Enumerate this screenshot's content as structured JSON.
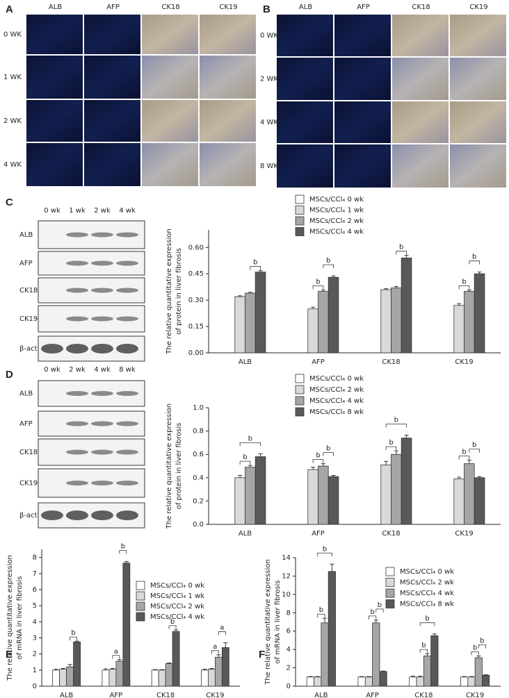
{
  "panels": [
    {
      "label": "A",
      "columns": [
        "ALB",
        "AFP",
        "CK18",
        "CK19"
      ],
      "rows": [
        "0 WK",
        "1 WK",
        "2 WK",
        "4 WK"
      ]
    },
    {
      "label": "B",
      "columns": [
        "ALB",
        "AFP",
        "CK18",
        "CK19"
      ],
      "rows": [
        "0 WK",
        "2 WK",
        "4 WK",
        "8 WK"
      ]
    }
  ],
  "blots": [
    {
      "lanes": [
        "0 wk",
        "1 wk",
        "2 wk",
        "4 wk"
      ],
      "rows": [
        "ALB",
        "AFP",
        "CK18",
        "CK19",
        "β-actin"
      ]
    },
    {
      "lanes": [
        "0 wk",
        "2 wk",
        "4 wk",
        "8 wk"
      ],
      "rows": [
        "ALB",
        "AFP",
        "CK18",
        "CK19",
        "β-actin"
      ]
    }
  ],
  "chart_data": [
    {
      "type": "bar",
      "panel_label": "C",
      "ylabel": [
        "The relative quantitative expression",
        "of protein in liver fibrosis"
      ],
      "categories": [
        "ALB",
        "AFP",
        "CK18",
        "CK19"
      ],
      "series": [
        {
          "name": "MSCs/CCl₄  0 wk",
          "color": "#ffffff",
          "values": [
            0,
            0,
            0,
            0
          ],
          "errors": [
            0,
            0,
            0,
            0
          ]
        },
        {
          "name": "MSCs/CCl₄  1 wk",
          "color": "#d9d9d9",
          "values": [
            0.32,
            0.25,
            0.36,
            0.27
          ],
          "errors": [
            0.005,
            0.01,
            0.005,
            0.01
          ]
        },
        {
          "name": "MSCs/CCl₄  2 wk",
          "color": "#a6a6a6",
          "values": [
            0.34,
            0.35,
            0.37,
            0.35
          ],
          "errors": [
            0.005,
            0.008,
            0.008,
            0.008
          ]
        },
        {
          "name": "MSCs/CCl₄  4 wk",
          "color": "#595959",
          "values": [
            0.46,
            0.43,
            0.54,
            0.45
          ],
          "errors": [
            0.008,
            0.008,
            0.015,
            0.01
          ]
        }
      ],
      "ylim": [
        0,
        0.7
      ],
      "yticks": [
        {
          "value": 0,
          "label": "0.00"
        },
        {
          "value": 0.15,
          "label": "0.15"
        },
        {
          "value": 0.3,
          "label": "0.30"
        },
        {
          "value": 0.45,
          "label": "0.45"
        },
        {
          "value": 0.6,
          "label": "0.60"
        }
      ],
      "significance": [
        {
          "label": "b",
          "category": 0,
          "bars": [
            2,
            3
          ]
        },
        {
          "label": "b",
          "category": 1,
          "bars": [
            1,
            2
          ]
        },
        {
          "label": "b",
          "category": 1,
          "bars": [
            2,
            3
          ]
        },
        {
          "label": "b",
          "category": 2,
          "bars": [
            2,
            3
          ]
        },
        {
          "label": "b",
          "category": 3,
          "bars": [
            1,
            2
          ]
        },
        {
          "label": "b",
          "category": 3,
          "bars": [
            2,
            3
          ]
        }
      ]
    },
    {
      "type": "bar",
      "panel_label": "D",
      "ylabel": [
        "The relative quantitative expression",
        "of protein in liver fibrosis"
      ],
      "categories": [
        "ALB",
        "AFP",
        "CK18",
        "CK19"
      ],
      "series": [
        {
          "name": "MSCs/CCl₄  0 wk",
          "color": "#ffffff",
          "values": [
            0,
            0,
            0,
            0
          ],
          "errors": [
            0,
            0,
            0,
            0
          ]
        },
        {
          "name": "MSCs/CCl₄  2 wk",
          "color": "#d9d9d9",
          "values": [
            0.4,
            0.47,
            0.51,
            0.39
          ],
          "errors": [
            0.02,
            0.02,
            0.03,
            0.015
          ]
        },
        {
          "name": "MSCs/CCl₄  4 wk",
          "color": "#a6a6a6",
          "values": [
            0.49,
            0.5,
            0.6,
            0.52
          ],
          "errors": [
            0.015,
            0.02,
            0.03,
            0.03
          ]
        },
        {
          "name": "MSCs/CCl₄  8 wk",
          "color": "#595959",
          "values": [
            0.58,
            0.41,
            0.74,
            0.4
          ],
          "errors": [
            0.025,
            0.01,
            0.025,
            0.01
          ]
        }
      ],
      "ylim": [
        0,
        1
      ],
      "yticks": [
        {
          "value": 0,
          "label": "0.0"
        },
        {
          "value": 0.2,
          "label": "0.2"
        },
        {
          "value": 0.4,
          "label": "0.4"
        },
        {
          "value": 0.6,
          "label": "0.6"
        },
        {
          "value": 0.8,
          "label": "0.8"
        },
        {
          "value": 1,
          "label": "1.0"
        }
      ],
      "significance": [
        {
          "label": "b",
          "category": 0,
          "bars": [
            1,
            2
          ]
        },
        {
          "label": "b",
          "category": 0,
          "bars": [
            1,
            3
          ]
        },
        {
          "label": "b",
          "category": 1,
          "bars": [
            1,
            2
          ]
        },
        {
          "label": "b",
          "category": 1,
          "bars": [
            2,
            3
          ]
        },
        {
          "label": "b",
          "category": 2,
          "bars": [
            1,
            2
          ]
        },
        {
          "label": "b",
          "category": 2,
          "bars": [
            1,
            3
          ]
        },
        {
          "label": "b",
          "category": 3,
          "bars": [
            1,
            2
          ]
        },
        {
          "label": "b",
          "category": 3,
          "bars": [
            2,
            3
          ]
        }
      ]
    },
    {
      "type": "bar",
      "panel_label": "E",
      "ylabel": [
        "The relative quantitative expression",
        "of mRNA in liver fibrosis"
      ],
      "categories": [
        "ALB",
        "AFP",
        "CK18",
        "CK19"
      ],
      "series": [
        {
          "name": "MSCs/CCl₄  0 wk",
          "color": "#ffffff",
          "values": [
            1.0,
            1.0,
            1.0,
            1.0
          ],
          "errors": [
            0.05,
            0.08,
            0.03,
            0.06
          ]
        },
        {
          "name": "MSCs/CCl₄  1 wk",
          "color": "#d9d9d9",
          "values": [
            1.05,
            1.05,
            1.0,
            1.05
          ],
          "errors": [
            0.05,
            0.05,
            0.03,
            0.05
          ]
        },
        {
          "name": "MSCs/CCl₄  2 wk",
          "color": "#a6a6a6",
          "values": [
            1.2,
            1.55,
            1.4,
            1.8
          ],
          "errors": [
            0.15,
            0.1,
            0.05,
            0.15
          ]
        },
        {
          "name": "MSCs/CCl₄  4 wk",
          "color": "#595959",
          "values": [
            2.75,
            7.65,
            3.4,
            2.4
          ],
          "errors": [
            0.05,
            0.1,
            0.1,
            0.3
          ]
        }
      ],
      "ylim": [
        0,
        8.5
      ],
      "yticks": [
        0,
        1,
        2,
        3,
        4,
        5,
        6,
        7,
        8
      ],
      "significance": [
        {
          "label": "b",
          "category": 0,
          "bars": [
            2,
            3
          ]
        },
        {
          "label": "a",
          "category": 1,
          "bars": [
            1,
            2
          ]
        },
        {
          "label": "b",
          "category": 1,
          "bars": [
            2,
            3
          ]
        },
        {
          "label": "b",
          "category": 2,
          "bars": [
            2,
            3
          ]
        },
        {
          "label": "a",
          "category": 3,
          "bars": [
            1,
            2
          ]
        },
        {
          "label": "a",
          "category": 3,
          "bars": [
            2,
            3
          ]
        }
      ]
    },
    {
      "type": "bar",
      "panel_label": "F",
      "ylabel": [
        "The relative quantitative expression",
        "of mRNA in liver fibrosis"
      ],
      "categories": [
        "ALB",
        "AFP",
        "CK18",
        "CK19"
      ],
      "series": [
        {
          "name": "MSCs/CCl₄  0 wk",
          "color": "#ffffff",
          "values": [
            1.0,
            1.0,
            1.0,
            1.0
          ],
          "errors": [
            0.05,
            0.05,
            0.1,
            0.05
          ]
        },
        {
          "name": "MSCs/CCl₄  2 wk",
          "color": "#d9d9d9",
          "values": [
            1.0,
            1.0,
            1.0,
            1.0
          ],
          "errors": [
            0.05,
            0.05,
            0.1,
            0.05
          ]
        },
        {
          "name": "MSCs/CCl₄  4 wk",
          "color": "#a6a6a6",
          "values": [
            6.9,
            6.9,
            3.3,
            3.1
          ],
          "errors": [
            0.5,
            0.3,
            0.25,
            0.2
          ]
        },
        {
          "name": "MSCs/CCl₄  8 wk",
          "color": "#595959",
          "values": [
            12.5,
            1.6,
            5.5,
            1.2
          ],
          "errors": [
            0.8,
            0.05,
            0.2,
            0.05
          ]
        }
      ],
      "ylim": [
        0,
        14
      ],
      "yticks": [
        0,
        2,
        4,
        6,
        8,
        10,
        12,
        14
      ],
      "significance": [
        {
          "label": "b",
          "category": 0,
          "bars": [
            1,
            2
          ]
        },
        {
          "label": "b",
          "category": 0,
          "bars": [
            1,
            3
          ]
        },
        {
          "label": "b",
          "category": 1,
          "bars": [
            1,
            2
          ]
        },
        {
          "label": "b",
          "category": 1,
          "bars": [
            2,
            3
          ]
        },
        {
          "label": "b",
          "category": 2,
          "bars": [
            1,
            2
          ]
        },
        {
          "label": "b",
          "category": 2,
          "bars": [
            1,
            3
          ]
        },
        {
          "label": "b",
          "category": 3,
          "bars": [
            1,
            2
          ]
        },
        {
          "label": "b",
          "category": 3,
          "bars": [
            2,
            3
          ]
        }
      ]
    }
  ]
}
